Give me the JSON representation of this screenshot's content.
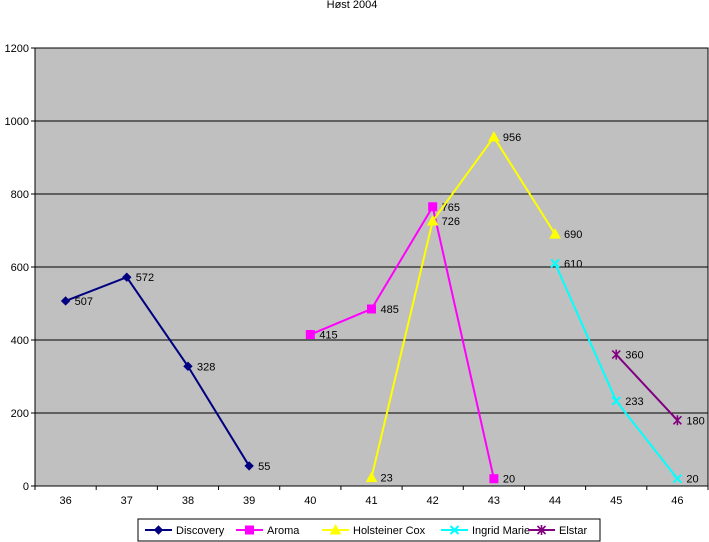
{
  "chart_data": {
    "type": "line",
    "title": "Høst 2004",
    "xlabel": "",
    "ylabel": "",
    "x": [
      36,
      37,
      38,
      39,
      40,
      41,
      42,
      43,
      44,
      45,
      46
    ],
    "ylim": [
      0,
      1200
    ],
    "yticks": [
      0,
      200,
      400,
      600,
      800,
      1000,
      1200
    ],
    "grid": true,
    "legend_position": "bottom",
    "plot_background": "#C0C0C0",
    "series": [
      {
        "name": "Discovery",
        "color": "#000080",
        "marker": "diamond",
        "points": [
          [
            36,
            507
          ],
          [
            37,
            572
          ],
          [
            38,
            328
          ],
          [
            39,
            55
          ]
        ]
      },
      {
        "name": "Aroma",
        "color": "#FF00FF",
        "marker": "square",
        "points": [
          [
            40,
            415
          ],
          [
            41,
            485
          ],
          [
            42,
            765
          ],
          [
            43,
            20
          ]
        ]
      },
      {
        "name": "Holsteiner Cox",
        "color": "#FFFF00",
        "marker": "triangle",
        "points": [
          [
            41,
            23
          ],
          [
            42,
            726
          ],
          [
            43,
            956
          ],
          [
            44,
            690
          ]
        ]
      },
      {
        "name": "Ingrid Marie",
        "color": "#00FFFF",
        "marker": "x",
        "points": [
          [
            44,
            610
          ],
          [
            45,
            233
          ],
          [
            46,
            20
          ]
        ]
      },
      {
        "name": "Elstar",
        "color": "#800080",
        "marker": "star",
        "points": [
          [
            45,
            360
          ],
          [
            46,
            180
          ]
        ]
      }
    ]
  }
}
